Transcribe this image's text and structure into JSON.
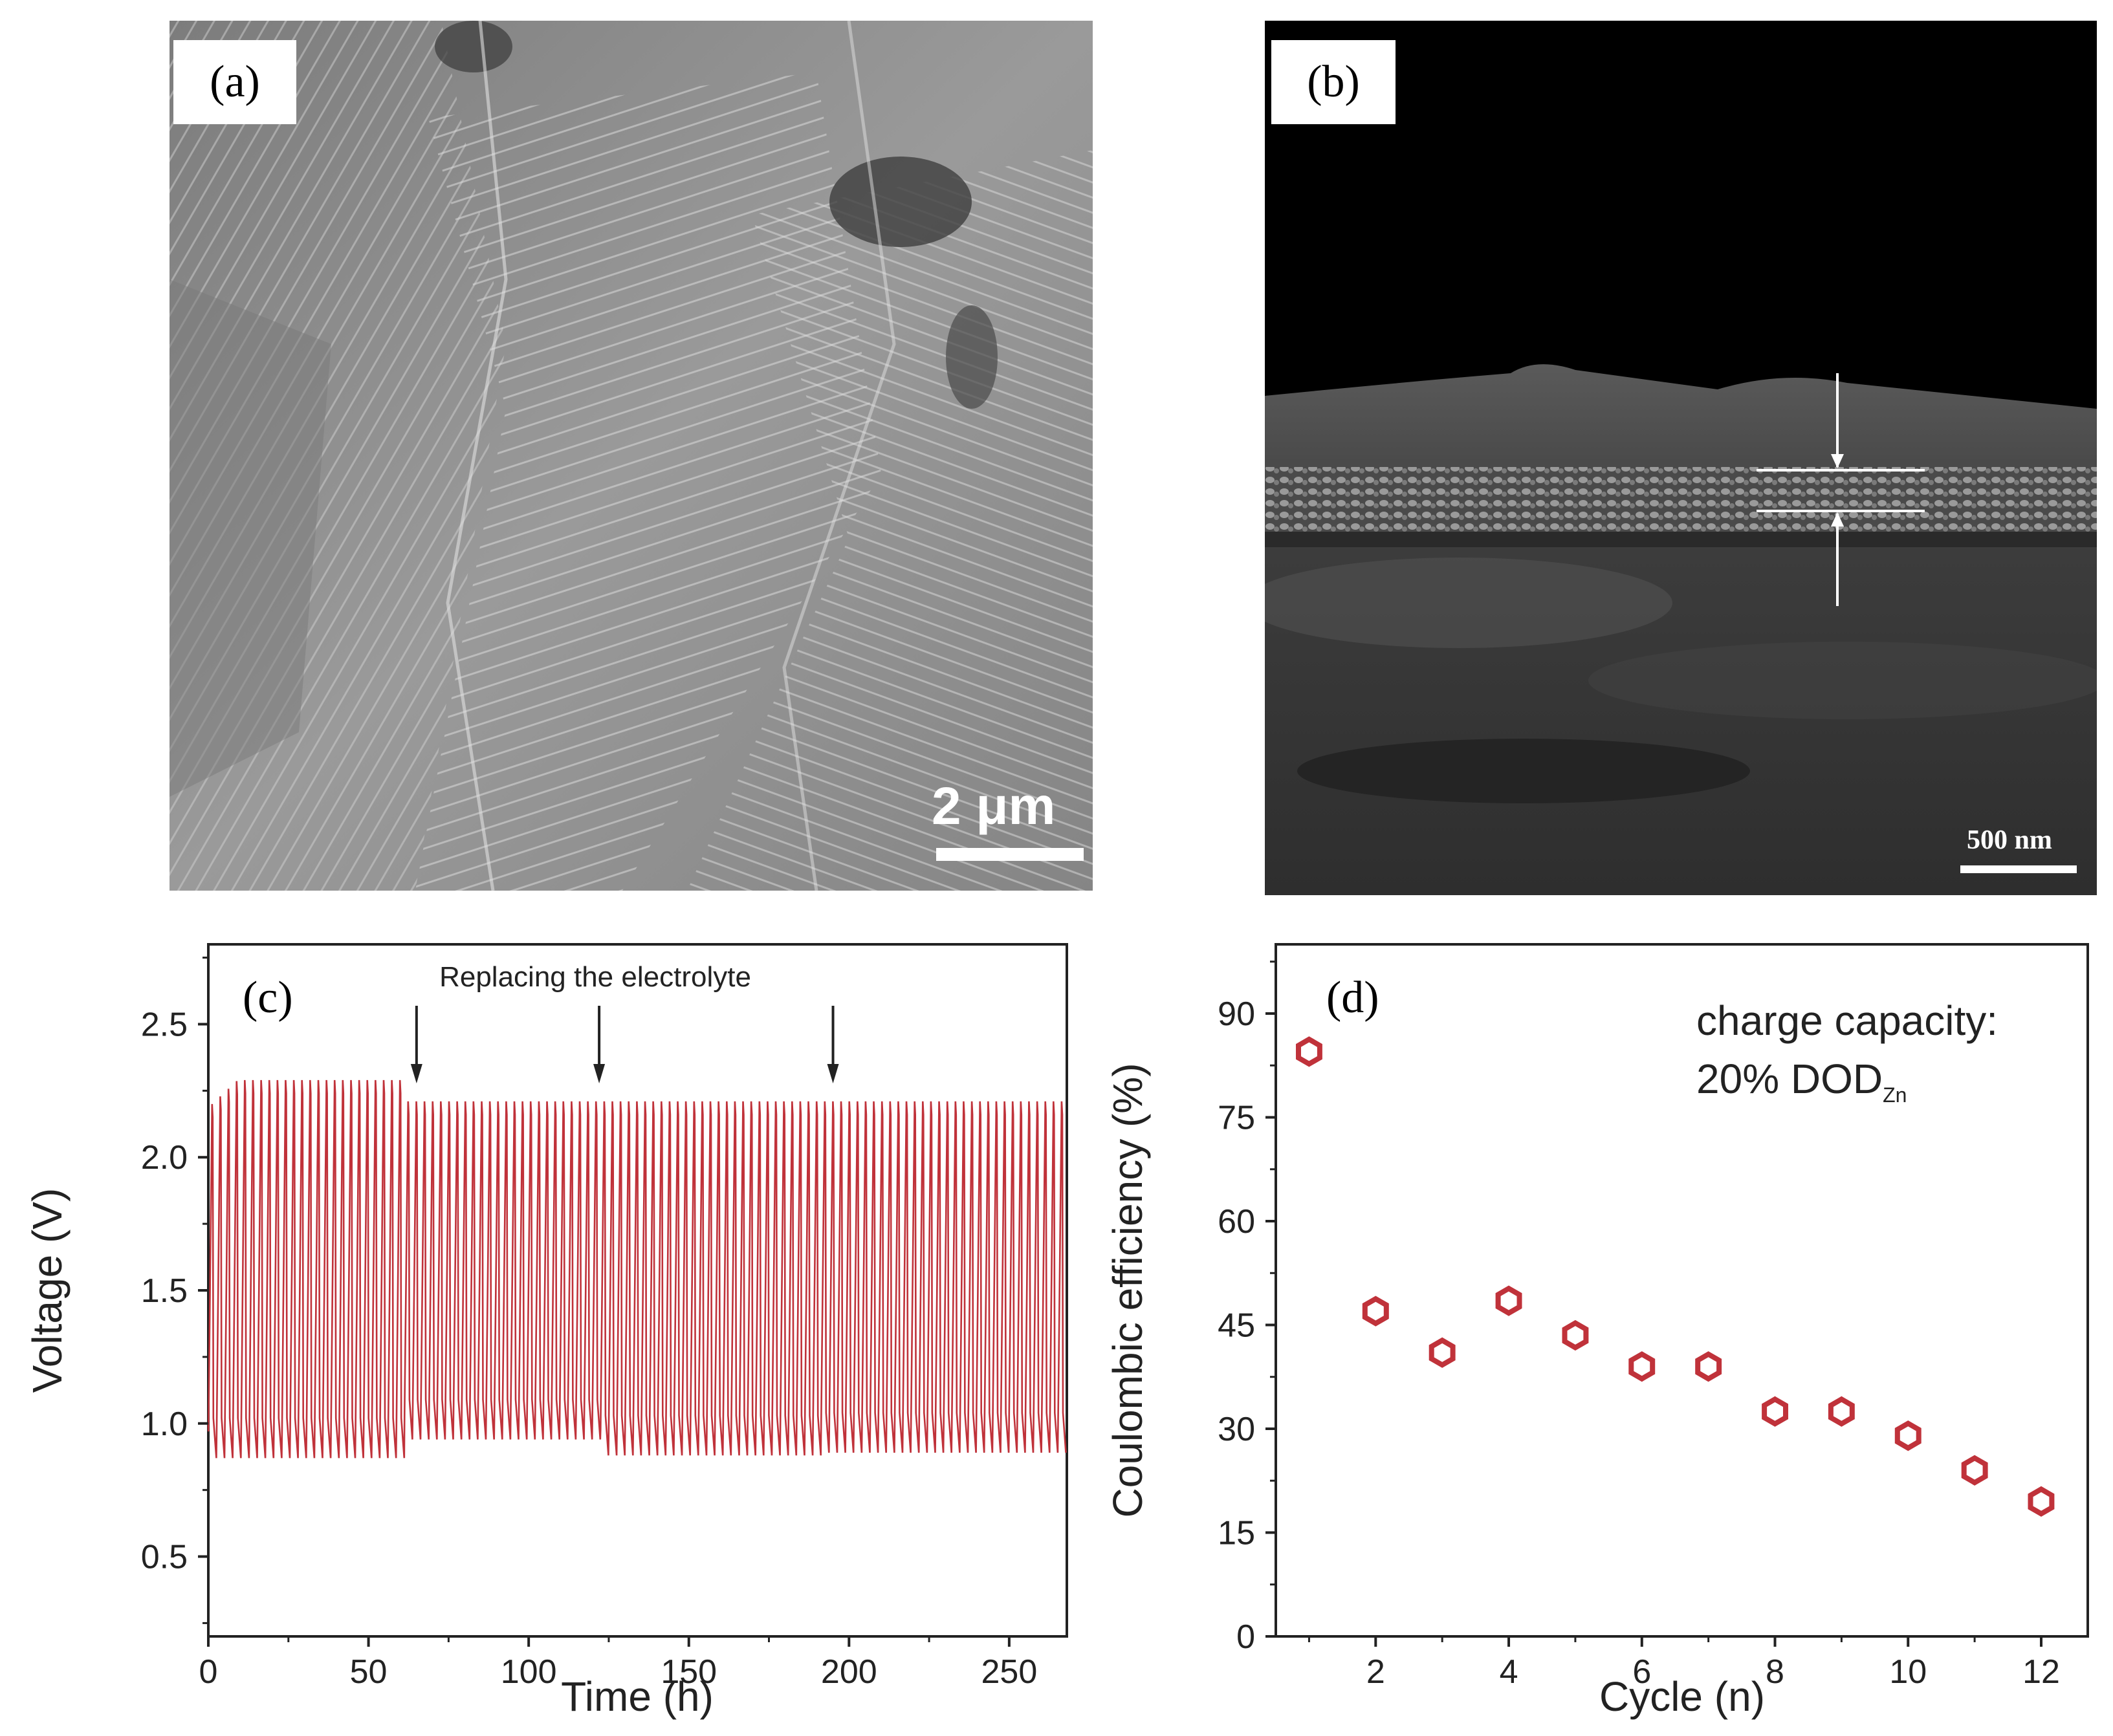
{
  "panels": {
    "a": {
      "label": "(a)",
      "scale_text": "2 μm"
    },
    "b": {
      "label": "(b)",
      "scale_text": "500 nm"
    },
    "c": {
      "label": "(c)"
    },
    "d": {
      "label": "(d)"
    }
  },
  "chart_data": [
    {
      "panel": "c",
      "type": "line",
      "title": "",
      "xlabel": "Time (h)",
      "ylabel": "Voltage (V)",
      "xlim": [
        0,
        268
      ],
      "ylim": [
        0.2,
        2.8
      ],
      "xticks": [
        0,
        50,
        100,
        150,
        200,
        250
      ],
      "yticks": [
        0.5,
        1.0,
        1.5,
        2.0,
        2.5
      ],
      "xtick_labels": [
        "0",
        "50",
        "100",
        "150",
        "200",
        "250"
      ],
      "ytick_labels": [
        "0.5",
        "1.0",
        "1.5",
        "2.0",
        "2.5"
      ],
      "annotation": "Replacing the electrolyte",
      "arrow_times": [
        65,
        122,
        195
      ],
      "color": "#c0323a",
      "cycle_period_h": 2.55,
      "segments": [
        {
          "t_start": 0,
          "t_end": 60,
          "upper": 2.29,
          "lower": 0.87
        },
        {
          "t_start": 60,
          "t_end": 122,
          "upper": 2.21,
          "lower": 0.94
        },
        {
          "t_start": 122,
          "t_end": 190,
          "upper": 2.21,
          "lower": 0.88
        },
        {
          "t_start": 190,
          "t_end": 268,
          "upper": 2.21,
          "lower": 0.89
        }
      ]
    },
    {
      "panel": "d",
      "type": "scatter",
      "title": "",
      "xlabel": "Cycle (n)",
      "ylabel": "Coulombic efficiency (%)",
      "xlim": [
        0.5,
        12.7
      ],
      "ylim": [
        0,
        100
      ],
      "xticks": [
        2,
        4,
        6,
        8,
        10,
        12
      ],
      "yticks": [
        0,
        15,
        30,
        45,
        60,
        75,
        90
      ],
      "xtick_labels": [
        "2",
        "4",
        "6",
        "8",
        "10",
        "12"
      ],
      "ytick_labels": [
        "0",
        "15",
        "30",
        "45",
        "60",
        "75",
        "90"
      ],
      "annotation_line1": "charge capacity:",
      "annotation_line2": "20% DOD",
      "annotation_sub": "Zn",
      "color": "#c0323a",
      "x": [
        1,
        2,
        3,
        4,
        5,
        6,
        7,
        8,
        9,
        10,
        11,
        12
      ],
      "y": [
        84.5,
        47,
        41,
        48.5,
        43.5,
        39,
        39,
        32.5,
        32.5,
        29,
        24,
        19.5
      ]
    }
  ]
}
